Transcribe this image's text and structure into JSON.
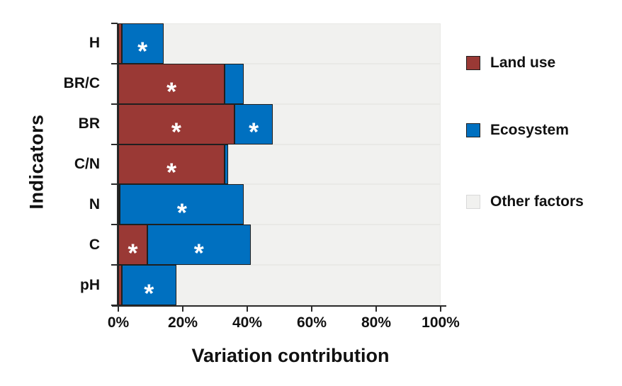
{
  "chart_data": {
    "type": "bar",
    "orientation": "horizontal",
    "stacked": true,
    "title": "",
    "xlabel": "Variation contribution",
    "ylabel": "Indicators",
    "xlim": [
      0,
      100
    ],
    "x_ticks": [
      {
        "value": 0,
        "label": "0%"
      },
      {
        "value": 20,
        "label": "20%"
      },
      {
        "value": 40,
        "label": "40%"
      },
      {
        "value": 60,
        "label": "60%"
      },
      {
        "value": 80,
        "label": "80%"
      },
      {
        "value": 100,
        "label": "100%"
      }
    ],
    "categories": [
      "H",
      "BR/C",
      "BR",
      "C/N",
      "N",
      "C",
      "pH"
    ],
    "series": [
      {
        "name": "Land use",
        "color": "#9A3935",
        "border_color": "#1f1f1f",
        "values": [
          1,
          33,
          36,
          33,
          0.5,
          9,
          1
        ],
        "significant": [
          false,
          true,
          true,
          true,
          false,
          true,
          false
        ]
      },
      {
        "name": "Ecosystem",
        "color": "#0070C0",
        "border_color": "#1f1f1f",
        "values": [
          13,
          6,
          12,
          1,
          38.5,
          32,
          17
        ],
        "significant": [
          true,
          false,
          true,
          false,
          true,
          true,
          true
        ]
      },
      {
        "name": "Other factors",
        "color": "#F1F1EF",
        "border_color": "#D9D9D9",
        "fills_remainder_to": 100
      }
    ],
    "significance_marker": "*",
    "marker_color": "#FFFFFF",
    "legend_position": "right",
    "grid": false
  }
}
